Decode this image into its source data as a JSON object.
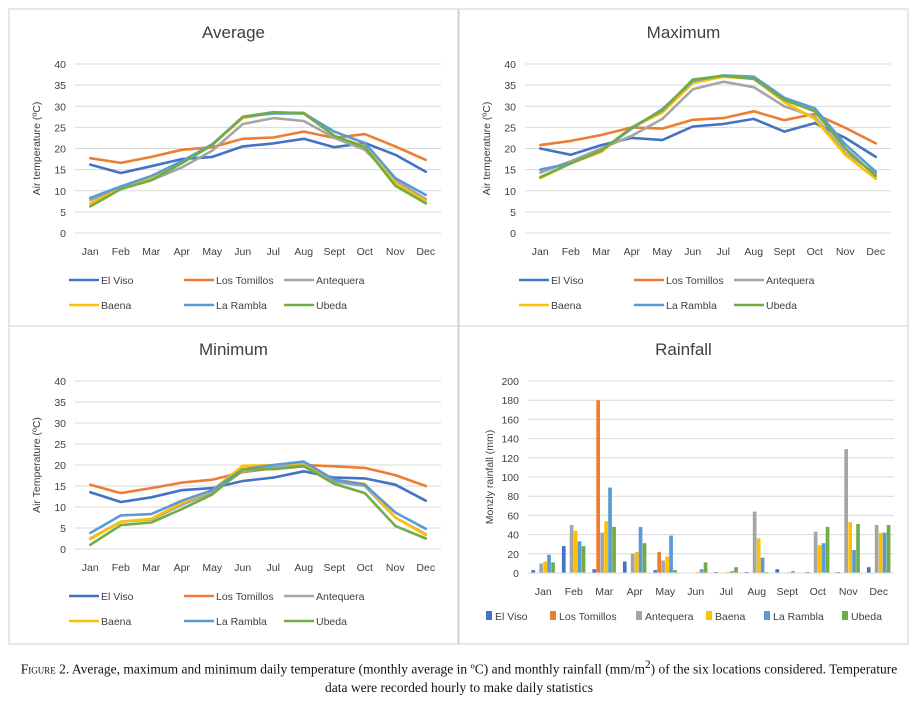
{
  "chart_data": [
    {
      "type": "line",
      "title": "Average",
      "ylabel": "Air temperature (ºC)",
      "ylim": [
        0,
        40
      ],
      "yticks": [
        0,
        5,
        10,
        15,
        20,
        25,
        30,
        35,
        40
      ],
      "categories": [
        "Jan",
        "Feb",
        "Mar",
        "Apr",
        "May",
        "Jun",
        "Jul",
        "Aug",
        "Sept",
        "Oct",
        "Nov",
        "Dec"
      ],
      "legend_position": "bottom",
      "grid": true,
      "series": [
        {
          "name": "El Viso",
          "color": "#4472c4",
          "values": [
            16.2,
            14.2,
            15.8,
            17.5,
            18.0,
            20.5,
            21.2,
            22.3,
            20.3,
            21.3,
            18.5,
            14.5
          ]
        },
        {
          "name": "Los Tomillos",
          "color": "#ed7d31",
          "values": [
            17.7,
            16.6,
            18.0,
            19.7,
            20.3,
            22.3,
            22.6,
            24.0,
            22.5,
            23.4,
            20.5,
            17.3
          ]
        },
        {
          "name": "Antequera",
          "color": "#a5a5a5",
          "values": [
            7.8,
            10.5,
            12.5,
            15.5,
            19.5,
            25.8,
            27.2,
            26.5,
            22.5,
            19.7,
            12.5,
            8.0
          ]
        },
        {
          "name": "Baena",
          "color": "#ffc000",
          "values": [
            7.0,
            10.5,
            12.8,
            16.8,
            21.0,
            27.2,
            28.5,
            28.5,
            23.0,
            20.5,
            11.8,
            7.5
          ]
        },
        {
          "name": "La Rambla",
          "color": "#5b9bd5",
          "values": [
            8.3,
            11.0,
            13.5,
            17.0,
            21.0,
            27.5,
            28.3,
            28.3,
            24.0,
            21.3,
            13.0,
            9.0
          ]
        },
        {
          "name": "Ubeda",
          "color": "#70ad47",
          "values": [
            6.3,
            10.4,
            12.5,
            16.5,
            20.8,
            27.5,
            28.6,
            28.3,
            23.0,
            20.3,
            11.2,
            7.0
          ]
        }
      ]
    },
    {
      "type": "line",
      "title": "Maximum",
      "ylabel": "Air temperature (ºC)",
      "ylim": [
        0,
        40
      ],
      "yticks": [
        0,
        5,
        10,
        15,
        20,
        25,
        30,
        35,
        40
      ],
      "categories": [
        "Jan",
        "Feb",
        "Mar",
        "Apr",
        "May",
        "Jun",
        "Jul",
        "Aug",
        "Sept",
        "Oct",
        "Nov",
        "Dec"
      ],
      "legend_position": "bottom",
      "grid": true,
      "series": [
        {
          "name": "El Viso",
          "color": "#4472c4",
          "values": [
            20.0,
            18.5,
            20.8,
            22.5,
            22.0,
            25.2,
            25.8,
            27.0,
            24.0,
            26.0,
            22.5,
            18.0
          ]
        },
        {
          "name": "Los Tomillos",
          "color": "#ed7d31",
          "values": [
            20.8,
            21.8,
            23.2,
            25.0,
            24.7,
            26.8,
            27.2,
            28.8,
            26.7,
            28.2,
            24.9,
            21.2
          ]
        },
        {
          "name": "Antequera",
          "color": "#a5a5a5",
          "values": [
            14.3,
            17.0,
            20.0,
            23.0,
            27.0,
            34.0,
            35.8,
            34.5,
            30.0,
            27.5,
            19.0,
            14.0
          ]
        },
        {
          "name": "Baena",
          "color": "#ffc000",
          "values": [
            13.0,
            16.5,
            19.2,
            25.0,
            28.5,
            35.5,
            37.0,
            36.5,
            31.0,
            27.0,
            18.5,
            12.8
          ]
        },
        {
          "name": "La Rambla",
          "color": "#5b9bd5",
          "values": [
            15.0,
            16.5,
            19.5,
            24.7,
            29.3,
            36.0,
            37.3,
            37.0,
            32.0,
            29.5,
            21.0,
            14.5
          ]
        },
        {
          "name": "Ubeda",
          "color": "#70ad47",
          "values": [
            13.2,
            16.5,
            19.5,
            25.0,
            29.0,
            36.3,
            37.2,
            36.5,
            31.5,
            28.8,
            20.0,
            13.5
          ]
        }
      ]
    },
    {
      "type": "line",
      "title": "Minimum",
      "ylabel": "Air Temperature (ºC)",
      "ylim": [
        0,
        40
      ],
      "yticks": [
        0,
        5,
        10,
        15,
        20,
        25,
        30,
        35,
        40
      ],
      "categories": [
        "Jan",
        "Feb",
        "Mar",
        "Apr",
        "May",
        "Jun",
        "Jul",
        "Aug",
        "Sept",
        "Oct",
        "Nov",
        "Dec"
      ],
      "legend_position": "bottom",
      "grid": true,
      "series": [
        {
          "name": "El Viso",
          "color": "#4472c4",
          "values": [
            13.5,
            11.2,
            12.3,
            14.0,
            14.5,
            16.2,
            17.0,
            18.5,
            17.0,
            16.8,
            15.3,
            11.5
          ]
        },
        {
          "name": "Los Tomillos",
          "color": "#ed7d31",
          "values": [
            15.3,
            13.3,
            14.5,
            15.8,
            16.5,
            18.3,
            19.2,
            20.0,
            19.7,
            19.3,
            17.6,
            15.0
          ]
        },
        {
          "name": "Antequera",
          "color": "#a5a5a5",
          "values": [
            2.5,
            6.5,
            7.0,
            10.5,
            13.5,
            18.5,
            19.5,
            20.0,
            16.0,
            15.0,
            7.5,
            3.5
          ]
        },
        {
          "name": "Baena",
          "color": "#ffc000",
          "values": [
            2.3,
            6.5,
            7.2,
            11.0,
            14.0,
            19.8,
            20.0,
            20.5,
            16.5,
            15.5,
            7.5,
            3.3
          ]
        },
        {
          "name": "La Rambla",
          "color": "#5b9bd5",
          "values": [
            3.8,
            8.0,
            8.3,
            11.5,
            14.0,
            19.0,
            20.0,
            20.8,
            16.5,
            15.3,
            8.7,
            4.8
          ]
        },
        {
          "name": "Ubeda",
          "color": "#70ad47",
          "values": [
            1.0,
            5.7,
            6.3,
            9.5,
            13.0,
            19.0,
            19.0,
            19.7,
            15.5,
            13.3,
            5.5,
            2.5
          ]
        }
      ]
    },
    {
      "type": "bar",
      "title": "Rainfall",
      "ylabel": "Monzly rainfall (mm)",
      "ylim": [
        0,
        200
      ],
      "yticks": [
        0,
        20,
        40,
        60,
        80,
        100,
        120,
        140,
        160,
        180,
        200
      ],
      "categories": [
        "Jan",
        "Feb",
        "Mar",
        "Apr",
        "May",
        "Jun",
        "Jul",
        "Aug",
        "Sept",
        "Oct",
        "Nov",
        "Dec"
      ],
      "legend_position": "bottom",
      "grid": true,
      "series": [
        {
          "name": "El Viso",
          "color": "#4472c4",
          "values": [
            3,
            28,
            4,
            12,
            3,
            0,
            1,
            1,
            4,
            1,
            1,
            6
          ]
        },
        {
          "name": "Los Tomillos",
          "color": "#ed7d31",
          "values": [
            0,
            0,
            180,
            0,
            22,
            0,
            0,
            0,
            0,
            0,
            0,
            0
          ]
        },
        {
          "name": "Antequera",
          "color": "#a5a5a5",
          "values": [
            10,
            50,
            42,
            20,
            13,
            0,
            0,
            64,
            0,
            43,
            129,
            50
          ]
        },
        {
          "name": "Baena",
          "color": "#ffc000",
          "values": [
            12,
            44,
            54,
            22,
            17,
            1,
            1,
            36,
            1,
            29,
            53,
            42
          ]
        },
        {
          "name": "La Rambla",
          "color": "#5b9bd5",
          "values": [
            19,
            33,
            89,
            48,
            39,
            4,
            2,
            16,
            2,
            31,
            24,
            42
          ]
        },
        {
          "name": "Ubeda",
          "color": "#70ad47",
          "values": [
            11,
            28,
            48,
            31,
            3,
            11,
            6,
            1,
            0,
            48,
            51,
            50
          ]
        }
      ]
    }
  ],
  "caption": {
    "figure_label": "Figure 2.",
    "text_part1": " Average, maximum and minimum daily temperature (monthly average in ºC) and monthly rainfall (mm/m",
    "superscript": "2",
    "text_part2": ") of the six locations considered. Temperature data were recorded hourly to make daily statistics"
  }
}
